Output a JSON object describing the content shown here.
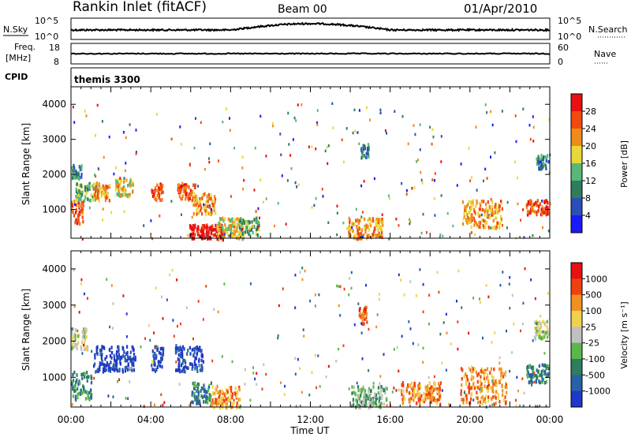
{
  "header": {
    "title": "Rankin Inlet (fitACF)",
    "beam": "Beam 00",
    "date": "01/Apr/2010"
  },
  "params": {
    "nsky_label": "N.Sky",
    "nsky_ticks": [
      "10^5",
      "10^0"
    ],
    "nsearch_label": "N.Search",
    "nsearch_ticks": [
      "10^5",
      "10^0"
    ],
    "freq_label_1": "Freq.",
    "freq_label_2": "[MHz]",
    "freq_ticks": [
      "18",
      "8"
    ],
    "nave_label": "Nave",
    "nave_ticks": [
      "60",
      "0"
    ],
    "cpid_label": "CPID",
    "cpid_value": "themis 3300"
  },
  "chart_data": [
    {
      "type": "heatmap",
      "name": "power",
      "ylabel": "Slant Range [km]",
      "xlabel": "",
      "xlim": [
        0,
        24
      ],
      "ylim": [
        180,
        4500
      ],
      "yticks": [
        1000,
        2000,
        3000,
        4000
      ],
      "colorbar": {
        "label": "Power [dB]",
        "ticks": [
          "28",
          "24",
          "20",
          "16",
          "12",
          "8",
          "4"
        ],
        "colors": [
          "#1a1aff",
          "#2a4fb8",
          "#2e7d5e",
          "#58b878",
          "#e8d838",
          "#f08a18",
          "#f04a10",
          "#e81010"
        ]
      },
      "regions": [
        {
          "t": [
            0.0,
            0.6
          ],
          "r": [
            600,
            1300
          ],
          "level": 6
        },
        {
          "t": [
            0.2,
            1.3
          ],
          "r": [
            1300,
            1800
          ],
          "level": 3
        },
        {
          "t": [
            0.0,
            0.5
          ],
          "r": [
            1900,
            2300
          ],
          "level": 2
        },
        {
          "t": [
            1.1,
            1.9
          ],
          "r": [
            1300,
            1800
          ],
          "level": 5
        },
        {
          "t": [
            2.2,
            3.1
          ],
          "r": [
            1400,
            1900
          ],
          "level": 4
        },
        {
          "t": [
            4.0,
            4.6
          ],
          "r": [
            1300,
            1800
          ],
          "level": 6
        },
        {
          "t": [
            5.3,
            6.2
          ],
          "r": [
            1300,
            1800
          ],
          "level": 6
        },
        {
          "t": [
            6.1,
            7.2
          ],
          "r": [
            900,
            1500
          ],
          "level": 5
        },
        {
          "t": [
            5.9,
            7.6
          ],
          "r": [
            180,
            600
          ],
          "level": 7
        },
        {
          "t": [
            7.3,
            8.6
          ],
          "r": [
            200,
            800
          ],
          "level": 4
        },
        {
          "t": [
            8.4,
            9.4
          ],
          "r": [
            300,
            800
          ],
          "level": 3
        },
        {
          "t": [
            13.8,
            15.6
          ],
          "r": [
            200,
            800
          ],
          "level": 5
        },
        {
          "t": [
            14.5,
            14.9
          ],
          "r": [
            2500,
            2900
          ],
          "level": 2
        },
        {
          "t": [
            19.6,
            21.6
          ],
          "r": [
            500,
            1300
          ],
          "level": 5
        },
        {
          "t": [
            22.8,
            23.9
          ],
          "r": [
            900,
            1300
          ],
          "level": 6
        },
        {
          "t": [
            23.3,
            23.9
          ],
          "r": [
            2200,
            2600
          ],
          "level": 2
        }
      ]
    },
    {
      "type": "heatmap",
      "name": "velocity",
      "ylabel": "Slant Range [km]",
      "xlabel": "Time UT",
      "xlim": [
        0,
        24
      ],
      "ylim": [
        180,
        4500
      ],
      "yticks": [
        1000,
        2000,
        3000,
        4000
      ],
      "xticks": [
        "00:00",
        "04:00",
        "08:00",
        "12:00",
        "16:00",
        "20:00",
        "00:00"
      ],
      "colorbar": {
        "label": "Velocity [m s⁻¹]",
        "ticks": [
          "1000",
          "500",
          "100",
          "25",
          "-25",
          "-100",
          "-500",
          "-1000"
        ],
        "colors": [
          "#2038c8",
          "#2a60a8",
          "#2e7d5e",
          "#5ab84a",
          "#c0c0c0",
          "#f0d050",
          "#f09020",
          "#f04010",
          "#e81010"
        ]
      },
      "regions": [
        {
          "t": [
            0.0,
            0.8
          ],
          "r": [
            1800,
            2400
          ],
          "level": 4
        },
        {
          "t": [
            1.1,
            2.3
          ],
          "r": [
            1200,
            1900
          ],
          "level": 0
        },
        {
          "t": [
            2.2,
            3.2
          ],
          "r": [
            1200,
            1900
          ],
          "level": 0
        },
        {
          "t": [
            4.0,
            4.6
          ],
          "r": [
            1200,
            1900
          ],
          "level": 0
        },
        {
          "t": [
            5.2,
            6.6
          ],
          "r": [
            1200,
            1900
          ],
          "level": 0
        },
        {
          "t": [
            0.0,
            1.0
          ],
          "r": [
            400,
            1200
          ],
          "level": 2
        },
        {
          "t": [
            6.0,
            7.0
          ],
          "r": [
            300,
            900
          ],
          "level": 2
        },
        {
          "t": [
            7.0,
            8.5
          ],
          "r": [
            200,
            800
          ],
          "level": 6
        },
        {
          "t": [
            14.4,
            14.8
          ],
          "r": [
            2500,
            3000
          ],
          "level": 7
        },
        {
          "t": [
            14.0,
            15.8
          ],
          "r": [
            200,
            800
          ],
          "level": 3
        },
        {
          "t": [
            16.5,
            18.5
          ],
          "r": [
            300,
            900
          ],
          "level": 6
        },
        {
          "t": [
            19.5,
            21.8
          ],
          "r": [
            300,
            1300
          ],
          "level": 6
        },
        {
          "t": [
            22.8,
            23.9
          ],
          "r": [
            900,
            1400
          ],
          "level": 2
        },
        {
          "t": [
            23.2,
            23.9
          ],
          "r": [
            2100,
            2600
          ],
          "level": 4
        }
      ]
    }
  ]
}
